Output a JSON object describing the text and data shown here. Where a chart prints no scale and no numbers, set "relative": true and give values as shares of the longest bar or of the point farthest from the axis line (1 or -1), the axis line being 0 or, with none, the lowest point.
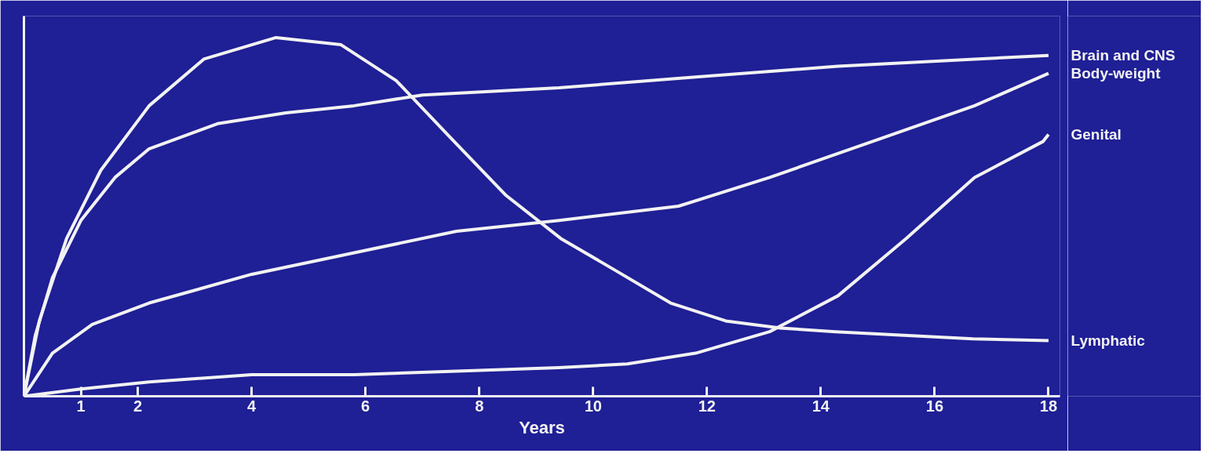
{
  "chart_data": {
    "type": "line",
    "xlabel": "Years",
    "relative": true,
    "xlim": [
      0,
      18.2
    ],
    "xticks": [
      1,
      2,
      4,
      6,
      8,
      10,
      12,
      14,
      16,
      18
    ],
    "grid": false,
    "legend": false,
    "marker": "none",
    "line_style": "solid",
    "series": [
      {
        "name": "Lymphatic",
        "color": "#f2f2f2",
        "x": [
          0,
          0.27,
          0.75,
          1.35,
          2.2,
          3.16,
          4.43,
          5.57,
          6.54,
          7.5,
          8.47,
          9.43,
          10.4,
          11.36,
          12.33,
          13.29,
          14.26,
          15.46,
          16.67,
          18
        ],
        "values": [
          0,
          0.21,
          0.44,
          0.63,
          0.81,
          0.94,
          1.0,
          0.98,
          0.88,
          0.72,
          0.56,
          0.44,
          0.35,
          0.26,
          0.21,
          0.19,
          0.18,
          0.17,
          0.16,
          0.155
        ]
      },
      {
        "name": "Brain and CNS",
        "color": "#f2f2f2",
        "x": [
          0,
          0.2,
          0.5,
          1,
          1.6,
          2.2,
          3.4,
          4.6,
          5.8,
          7.0,
          9.4,
          11.8,
          14.3,
          16.7,
          18
        ],
        "values": [
          0,
          0.17,
          0.33,
          0.49,
          0.61,
          0.69,
          0.76,
          0.79,
          0.81,
          0.84,
          0.86,
          0.89,
          0.92,
          0.94,
          0.95
        ]
      },
      {
        "name": "Body-weight",
        "color": "#f2f2f2",
        "x": [
          0,
          0.5,
          1.2,
          2.2,
          4.0,
          5.8,
          7.6,
          9.4,
          11.5,
          13.1,
          14.9,
          16.7,
          18
        ],
        "values": [
          0,
          0.12,
          0.2,
          0.26,
          0.34,
          0.4,
          0.46,
          0.49,
          0.53,
          0.61,
          0.71,
          0.81,
          0.9
        ]
      },
      {
        "name": "Genital",
        "color": "#f2f2f2",
        "x": [
          0,
          1,
          2.2,
          4,
          5.8,
          7.6,
          9.4,
          10.6,
          11.8,
          13.1,
          14.3,
          15.5,
          16.7,
          17.9,
          18
        ],
        "values": [
          0,
          0.02,
          0.04,
          0.06,
          0.06,
          0.07,
          0.08,
          0.09,
          0.12,
          0.18,
          0.28,
          0.44,
          0.61,
          0.71,
          0.73
        ]
      }
    ]
  }
}
